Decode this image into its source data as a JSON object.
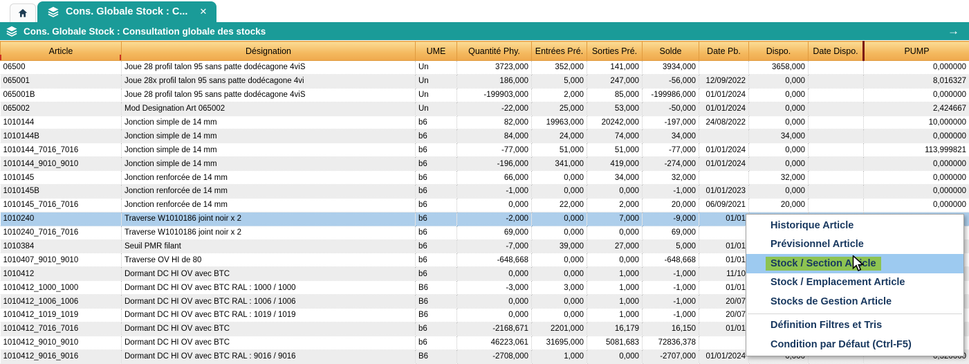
{
  "colors": {
    "teal": "#1a9b98",
    "header_orange_top": "#fbdc95",
    "header_orange_bottom": "#efa94d",
    "selected_row_blue": "#adceeb",
    "menu_highlight_blue": "#9dcaf0",
    "menu_highlight_green": "#8dc351",
    "menu_text_navy": "#17375e",
    "red_marker": "#cc3322"
  },
  "tabs": {
    "active_tab": {
      "label": "Cons. Globale Stock : C...",
      "close": "✕"
    }
  },
  "titlebar": {
    "title": "Cons. Globale Stock : Consultation globale des stocks",
    "nav_arrow": "→"
  },
  "table": {
    "columns": [
      {
        "label": "Article",
        "align": "left"
      },
      {
        "label": "Désignation",
        "align": "left"
      },
      {
        "label": "UME",
        "align": "left"
      },
      {
        "label": "Quantité Phy.",
        "align": "right"
      },
      {
        "label": "Entrées Pré.",
        "align": "right"
      },
      {
        "label": "Sorties Pré.",
        "align": "right"
      },
      {
        "label": "Solde",
        "align": "right"
      },
      {
        "label": "Date Pb.",
        "align": "right"
      },
      {
        "label": "Dispo.",
        "align": "right"
      },
      {
        "label": "Date Dispo.",
        "align": "right"
      },
      {
        "label": "PUMP",
        "align": "right"
      }
    ],
    "selected_row_index": 11,
    "rows": [
      [
        "06500",
        "Joue 28 profil talon 95 sans patte dodécagone 4viS",
        "Un",
        "3723,000",
        "352,000",
        "141,000",
        "3934,000",
        "",
        "3658,000",
        "",
        "0,000000"
      ],
      [
        "065001",
        "Joue 28x profil talon 95 sans patte dodécagone 4vi",
        "Un",
        "186,000",
        "5,000",
        "247,000",
        "-56,000",
        "12/09/2022",
        "0,000",
        "",
        "8,016327"
      ],
      [
        "065001B",
        "Joue 28 profil talon 95 sans patte dodécagone 4viS",
        "Un",
        "-199903,000",
        "2,000",
        "85,000",
        "-199986,000",
        "01/01/2024",
        "0,000",
        "",
        "0,000000"
      ],
      [
        "065002",
        "Mod Designation Art 065002",
        "Un",
        "-22,000",
        "25,000",
        "53,000",
        "-50,000",
        "01/01/2024",
        "0,000",
        "",
        "2,424667"
      ],
      [
        "1010144",
        "Jonction simple de 14 mm",
        "b6",
        "82,000",
        "19963,000",
        "20242,000",
        "-197,000",
        "24/08/2022",
        "0,000",
        "",
        "10,000000"
      ],
      [
        "1010144B",
        "Jonction simple de 14 mm",
        "b6",
        "84,000",
        "24,000",
        "74,000",
        "34,000",
        "",
        "34,000",
        "",
        "0,000000"
      ],
      [
        "1010144_7016_7016",
        "Jonction simple de 14 mm",
        "b6",
        "-77,000",
        "51,000",
        "51,000",
        "-77,000",
        "01/01/2024",
        "0,000",
        "",
        "113,999821"
      ],
      [
        "1010144_9010_9010",
        "Jonction simple de 14 mm",
        "b6",
        "-196,000",
        "341,000",
        "419,000",
        "-274,000",
        "01/01/2024",
        "0,000",
        "",
        "0,000000"
      ],
      [
        "1010145",
        "Jonction renforcée de 14 mm",
        "b6",
        "66,000",
        "0,000",
        "34,000",
        "32,000",
        "",
        "32,000",
        "",
        "0,000000"
      ],
      [
        "1010145B",
        "Jonction renforcée de 14 mm",
        "b6",
        "-1,000",
        "0,000",
        "0,000",
        "-1,000",
        "01/01/2023",
        "0,000",
        "",
        "0,000000"
      ],
      [
        "1010145_7016_7016",
        "Jonction renforcée de 14 mm",
        "b6",
        "0,000",
        "22,000",
        "2,000",
        "20,000",
        "06/09/2021",
        "20,000",
        "",
        "0,000000"
      ],
      [
        "1010240",
        "Traverse W1010186 joint noir x 2",
        "b6",
        "-2,000",
        "0,000",
        "7,000",
        "-9,000",
        "01/01",
        "",
        "",
        ""
      ],
      [
        "1010240_7016_7016",
        "Traverse W1010186 joint noir x 2",
        "b6",
        "69,000",
        "0,000",
        "0,000",
        "69,000",
        "",
        "",
        "",
        ""
      ],
      [
        "1010384",
        "Seuil PMR filant",
        "b6",
        "-7,000",
        "39,000",
        "27,000",
        "5,000",
        "01/01",
        "",
        "",
        ""
      ],
      [
        "1010407_9010_9010",
        "Traverse OV HI de 80",
        "b6",
        "-648,668",
        "0,000",
        "0,000",
        "-648,668",
        "01/01",
        "",
        "",
        ""
      ],
      [
        "1010412",
        "Dormant DC HI OV avec BTC",
        "b6",
        "0,000",
        "0,000",
        "1,000",
        "-1,000",
        "11/10",
        "",
        "",
        ""
      ],
      [
        "1010412_1000_1000",
        "Dormant DC HI OV avec BTC RAL : 1000 / 1000",
        "B6",
        "-3,000",
        "3,000",
        "1,000",
        "-1,000",
        "01/01",
        "",
        "",
        ""
      ],
      [
        "1010412_1006_1006",
        "Dormant DC HI OV avec BTC RAL : 1006 / 1006",
        "B6",
        "0,000",
        "0,000",
        "1,000",
        "-1,000",
        "20/07",
        "",
        "",
        ""
      ],
      [
        "1010412_1019_1019",
        "Dormant DC HI OV avec BTC RAL : 1019 / 1019",
        "B6",
        "0,000",
        "0,000",
        "1,000",
        "-1,000",
        "20/07",
        "",
        "",
        ""
      ],
      [
        "1010412_7016_7016",
        "Dormant DC HI OV avec BTC",
        "b6",
        "-2168,671",
        "2201,000",
        "16,179",
        "16,150",
        "01/01",
        "",
        "",
        ""
      ],
      [
        "1010412_9010_9010",
        "Dormant DC HI OV avec BTC",
        "b6",
        "46223,061",
        "31695,000",
        "5081,683",
        "72836,378",
        "",
        "",
        "",
        ""
      ],
      [
        "1010412_9016_9016",
        "Dormant DC HI OV avec BTC RAL : 9016 / 9016",
        "B6",
        "-2708,000",
        "1,000",
        "0,000",
        "-2707,000",
        "01/01/2024",
        "0,000",
        "",
        "0,320000"
      ]
    ]
  },
  "context_menu": {
    "highlighted_index": 2,
    "items": [
      {
        "label": "Historique Article"
      },
      {
        "label": "Prévisionnel Article"
      },
      {
        "label": "Stock / Section Article",
        "highlighted": true
      },
      {
        "label": "Stock / Emplacement Article"
      },
      {
        "label": "Stocks de Gestion Article"
      },
      {
        "label": "Définition Filtres et Tris",
        "separator_before": true
      },
      {
        "label": "Condition par Défaut (Ctrl-F5)"
      }
    ]
  }
}
